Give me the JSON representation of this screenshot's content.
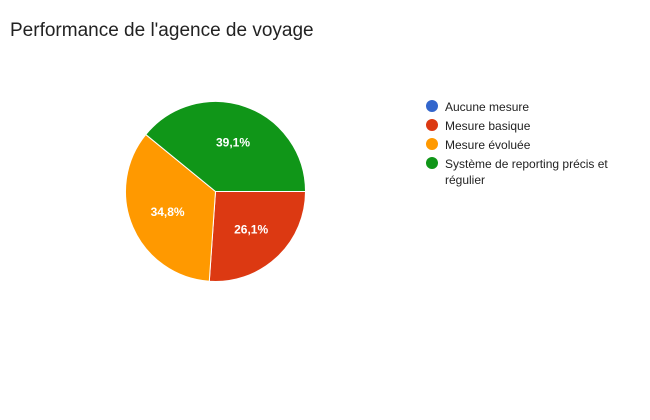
{
  "chart_data": {
    "type": "pie",
    "title": "Performance de l'agence de voyage",
    "legend_position": "right",
    "categories": [
      "Aucune mesure",
      "Mesure basique",
      "Mesure évoluée",
      "Système de reporting précis et régulier"
    ],
    "values": [
      0,
      26.1,
      34.8,
      39.1
    ],
    "value_labels": [
      "",
      "26,1%",
      "34,8%",
      "39,1%"
    ],
    "colors": [
      "#3366cc",
      "#dc3912",
      "#ff9900",
      "#109618"
    ]
  }
}
